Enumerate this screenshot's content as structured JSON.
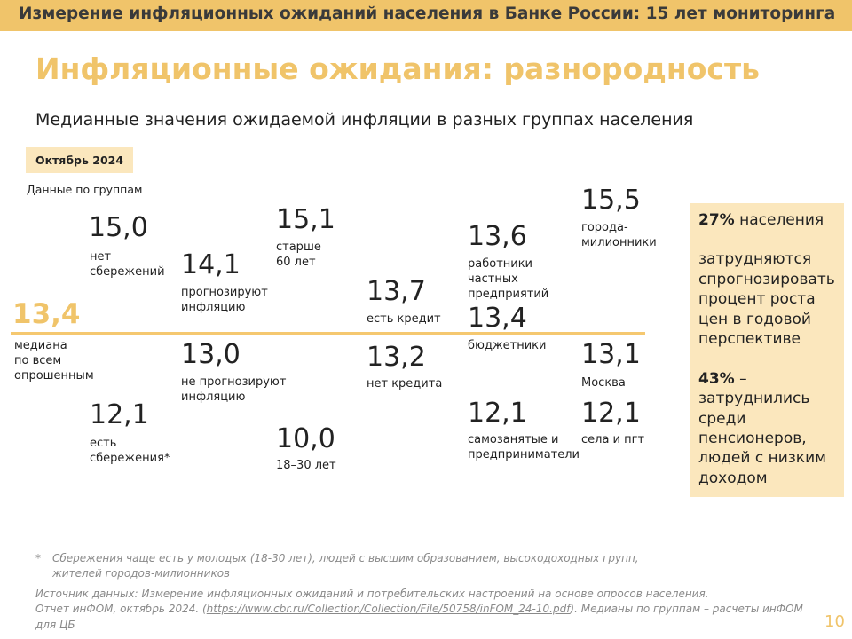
{
  "topbar": {
    "title": "Измерение инфляционных ожиданий населения в Банке России: 15 лет мониторинга"
  },
  "slide": {
    "title": "Инфляционные ожидания: разнородность",
    "subtitle": "Медианные значения ожидаемой инфляции в разных группах населения",
    "date_badge": "Октябрь 2024",
    "groups_label": "Данные по группам"
  },
  "median": {
    "value": "13,4",
    "label_lines": [
      "медиана",
      "по всем",
      "опрошенным"
    ]
  },
  "groups": {
    "no_savings": {
      "value": "15,0",
      "label_lines": [
        "нет",
        "сбережений"
      ]
    },
    "has_savings": {
      "value": "12,1",
      "label_lines": [
        "есть",
        "сбережения*"
      ]
    },
    "forecast": {
      "value": "14,1",
      "label_lines": [
        "прогнозируют",
        "инфляцию"
      ]
    },
    "no_forecast": {
      "value": "13,0",
      "label_lines": [
        "не прогнозируют",
        "инфляцию"
      ]
    },
    "older_60": {
      "value": "15,1",
      "label_lines": [
        "старше",
        "60 лет"
      ]
    },
    "age_18_30": {
      "value": "10,0",
      "label_lines": [
        "18–30 лет"
      ]
    },
    "has_credit": {
      "value": "13,7",
      "label_lines": [
        "есть кредит"
      ]
    },
    "no_credit": {
      "value": "13,2",
      "label_lines": [
        "нет кредита"
      ]
    },
    "private_workers": {
      "value": "13,6",
      "label_lines": [
        "работники",
        "частных",
        "предприятий"
      ]
    },
    "public_sector": {
      "value": "13,4",
      "label_lines": [
        "бюджетники"
      ]
    },
    "self_employed": {
      "value": "12,1",
      "label_lines": [
        "самозанятые и",
        "предприниматели"
      ]
    },
    "million_cities": {
      "value": "15,5",
      "label_lines": [
        "города-",
        "милионники"
      ]
    },
    "moscow": {
      "value": "13,1",
      "label_lines": [
        "Москва"
      ]
    },
    "villages": {
      "value": "12,1",
      "label_lines": [
        "села и пгт"
      ]
    }
  },
  "aside": {
    "stat1_value": "27%",
    "stat1_text": " населения",
    "stat1_desc": "затрудняются спрогнозировать процент роста цен в годовой перспективе",
    "stat2_value": "43%",
    "stat2_text": " – затруднились среди пенсионеров, людей с низким доходом"
  },
  "footnote": {
    "marker": "*",
    "text": "Сбережения чаще есть у молодых (18-30 лет), людей с высшим образованием, высокодоходных групп, жителей городов-милионников"
  },
  "source": {
    "line1": "Источник данных: Измерение инфляционных ожиданий и потребительских настроений на основе опросов населения.",
    "prefix2": "Отчет инФОМ, октябрь 2024. (",
    "link": "https://www.cbr.ru/Collection/Collection/File/50758/inFOM_24-10.pdf",
    "suffix2": "). Медианы по группам – расчеты инФОМ для ЦБ"
  },
  "page_number": "10",
  "colors": {
    "accent": "#f0c46a",
    "accent_light": "#fbe7bd",
    "median_line": "#f5c870"
  }
}
